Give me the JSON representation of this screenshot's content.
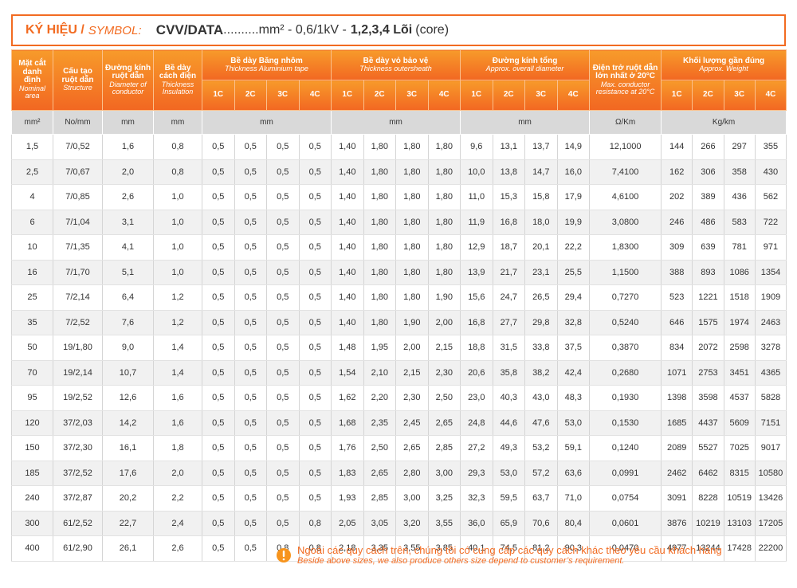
{
  "header": {
    "label": "KÝ HIỆU /",
    "label_en": "SYMBOL:",
    "product": "CVV/DATA",
    "spec": "..........mm² - 0,6/1kV -",
    "cores": "1,2,3,4 Lõi",
    "cores_en": "(core)"
  },
  "table": {
    "columns": [
      {
        "vi": "Mặt cắt danh định",
        "en": "Nominal area"
      },
      {
        "vi": "Cấu tạo ruột dẫn",
        "en": "Structure"
      },
      {
        "vi": "Đường kính ruột dẫn",
        "en": "Diameter of conductor"
      },
      {
        "vi": "Bề dày cách điện",
        "en": "Thickness Insulation"
      },
      {
        "vi": "Bề dày Băng nhôm",
        "en": "Thickness Aluminium tape",
        "subs": [
          "1C",
          "2C",
          "3C",
          "4C"
        ]
      },
      {
        "vi": "Bề dày vỏ bảo vệ",
        "en": "Thickness outersheath",
        "subs": [
          "1C",
          "2C",
          "3C",
          "4C"
        ]
      },
      {
        "vi": "Đường kính tổng",
        "en": "Approx. overall diameter",
        "subs": [
          "1C",
          "2C",
          "3C",
          "4C"
        ]
      },
      {
        "vi": "Điện trở ruột dẫn lớn nhất ở 20°C",
        "en": "Max. conductor resistance at 20°C"
      },
      {
        "vi": "Khối lượng gần đúng",
        "en": "Approx. Weight",
        "subs": [
          "1C",
          "2C",
          "3C",
          "4C"
        ]
      }
    ],
    "units": [
      "mm²",
      "No/mm",
      "mm",
      "mm",
      "mm",
      "mm",
      "mm",
      "Ω/Km",
      "Kg/km"
    ],
    "rows": [
      [
        "1,5",
        "7/0,52",
        "1,6",
        "0,8",
        "0,5",
        "0,5",
        "0,5",
        "0,5",
        "1,40",
        "1,80",
        "1,80",
        "1,80",
        "9,6",
        "13,1",
        "13,7",
        "14,9",
        "12,1000",
        "144",
        "266",
        "297",
        "355"
      ],
      [
        "2,5",
        "7/0,67",
        "2,0",
        "0,8",
        "0,5",
        "0,5",
        "0,5",
        "0,5",
        "1,40",
        "1,80",
        "1,80",
        "1,80",
        "10,0",
        "13,8",
        "14,7",
        "16,0",
        "7,4100",
        "162",
        "306",
        "358",
        "430"
      ],
      [
        "4",
        "7/0,85",
        "2,6",
        "1,0",
        "0,5",
        "0,5",
        "0,5",
        "0,5",
        "1,40",
        "1,80",
        "1,80",
        "1,80",
        "11,0",
        "15,3",
        "15,8",
        "17,9",
        "4,6100",
        "202",
        "389",
        "436",
        "562"
      ],
      [
        "6",
        "7/1,04",
        "3,1",
        "1,0",
        "0,5",
        "0,5",
        "0,5",
        "0,5",
        "1,40",
        "1,80",
        "1,80",
        "1,80",
        "11,9",
        "16,8",
        "18,0",
        "19,9",
        "3,0800",
        "246",
        "486",
        "583",
        "722"
      ],
      [
        "10",
        "7/1,35",
        "4,1",
        "1,0",
        "0,5",
        "0,5",
        "0,5",
        "0,5",
        "1,40",
        "1,80",
        "1,80",
        "1,80",
        "12,9",
        "18,7",
        "20,1",
        "22,2",
        "1,8300",
        "309",
        "639",
        "781",
        "971"
      ],
      [
        "16",
        "7/1,70",
        "5,1",
        "1,0",
        "0,5",
        "0,5",
        "0,5",
        "0,5",
        "1,40",
        "1,80",
        "1,80",
        "1,80",
        "13,9",
        "21,7",
        "23,1",
        "25,5",
        "1,1500",
        "388",
        "893",
        "1086",
        "1354"
      ],
      [
        "25",
        "7/2,14",
        "6,4",
        "1,2",
        "0,5",
        "0,5",
        "0,5",
        "0,5",
        "1,40",
        "1,80",
        "1,80",
        "1,90",
        "15,6",
        "24,7",
        "26,5",
        "29,4",
        "0,7270",
        "523",
        "1221",
        "1518",
        "1909"
      ],
      [
        "35",
        "7/2,52",
        "7,6",
        "1,2",
        "0,5",
        "0,5",
        "0,5",
        "0,5",
        "1,40",
        "1,80",
        "1,90",
        "2,00",
        "16,8",
        "27,7",
        "29,8",
        "32,8",
        "0,5240",
        "646",
        "1575",
        "1974",
        "2463"
      ],
      [
        "50",
        "19/1,80",
        "9,0",
        "1,4",
        "0,5",
        "0,5",
        "0,5",
        "0,5",
        "1,48",
        "1,95",
        "2,00",
        "2,15",
        "18,8",
        "31,5",
        "33,8",
        "37,5",
        "0,3870",
        "834",
        "2072",
        "2598",
        "3278"
      ],
      [
        "70",
        "19/2,14",
        "10,7",
        "1,4",
        "0,5",
        "0,5",
        "0,5",
        "0,5",
        "1,54",
        "2,10",
        "2,15",
        "2,30",
        "20,6",
        "35,8",
        "38,2",
        "42,4",
        "0,2680",
        "1071",
        "2753",
        "3451",
        "4365"
      ],
      [
        "95",
        "19/2,52",
        "12,6",
        "1,6",
        "0,5",
        "0,5",
        "0,5",
        "0,5",
        "1,62",
        "2,20",
        "2,30",
        "2,50",
        "23,0",
        "40,3",
        "43,0",
        "48,3",
        "0,1930",
        "1398",
        "3598",
        "4537",
        "5828"
      ],
      [
        "120",
        "37/2,03",
        "14,2",
        "1,6",
        "0,5",
        "0,5",
        "0,5",
        "0,5",
        "1,68",
        "2,35",
        "2,45",
        "2,65",
        "24,8",
        "44,6",
        "47,6",
        "53,0",
        "0,1530",
        "1685",
        "4437",
        "5609",
        "7151"
      ],
      [
        "150",
        "37/2,30",
        "16,1",
        "1,8",
        "0,5",
        "0,5",
        "0,5",
        "0,5",
        "1,76",
        "2,50",
        "2,65",
        "2,85",
        "27,2",
        "49,3",
        "53,2",
        "59,1",
        "0,1240",
        "2089",
        "5527",
        "7025",
        "9017"
      ],
      [
        "185",
        "37/2,52",
        "17,6",
        "2,0",
        "0,5",
        "0,5",
        "0,5",
        "0,5",
        "1,83",
        "2,65",
        "2,80",
        "3,00",
        "29,3",
        "53,0",
        "57,2",
        "63,6",
        "0,0991",
        "2462",
        "6462",
        "8315",
        "10580"
      ],
      [
        "240",
        "37/2,87",
        "20,2",
        "2,2",
        "0,5",
        "0,5",
        "0,5",
        "0,5",
        "1,93",
        "2,85",
        "3,00",
        "3,25",
        "32,3",
        "59,5",
        "63,7",
        "71,0",
        "0,0754",
        "3091",
        "8228",
        "10519",
        "13426"
      ],
      [
        "300",
        "61/2,52",
        "22,7",
        "2,4",
        "0,5",
        "0,5",
        "0,5",
        "0,8",
        "2,05",
        "3,05",
        "3,20",
        "3,55",
        "36,0",
        "65,9",
        "70,6",
        "80,4",
        "0,0601",
        "3876",
        "10219",
        "13103",
        "17205"
      ],
      [
        "400",
        "61/2,90",
        "26,1",
        "2,6",
        "0,5",
        "0,5",
        "0,8",
        "0,8",
        "2,18",
        "3,35",
        "3,55",
        "3,85",
        "40,1",
        "74,5",
        "81,2",
        "90,3",
        "0,0470",
        "4977",
        "13244",
        "17428",
        "22200"
      ]
    ]
  },
  "note": {
    "vi": "Ngoài các quy cách trên, chúng tôi có cung cấp các quy cách khác theo yêu cầu khách hàng",
    "en": "Beside above sizes, we also produce others size depend to customer’s requirement."
  }
}
